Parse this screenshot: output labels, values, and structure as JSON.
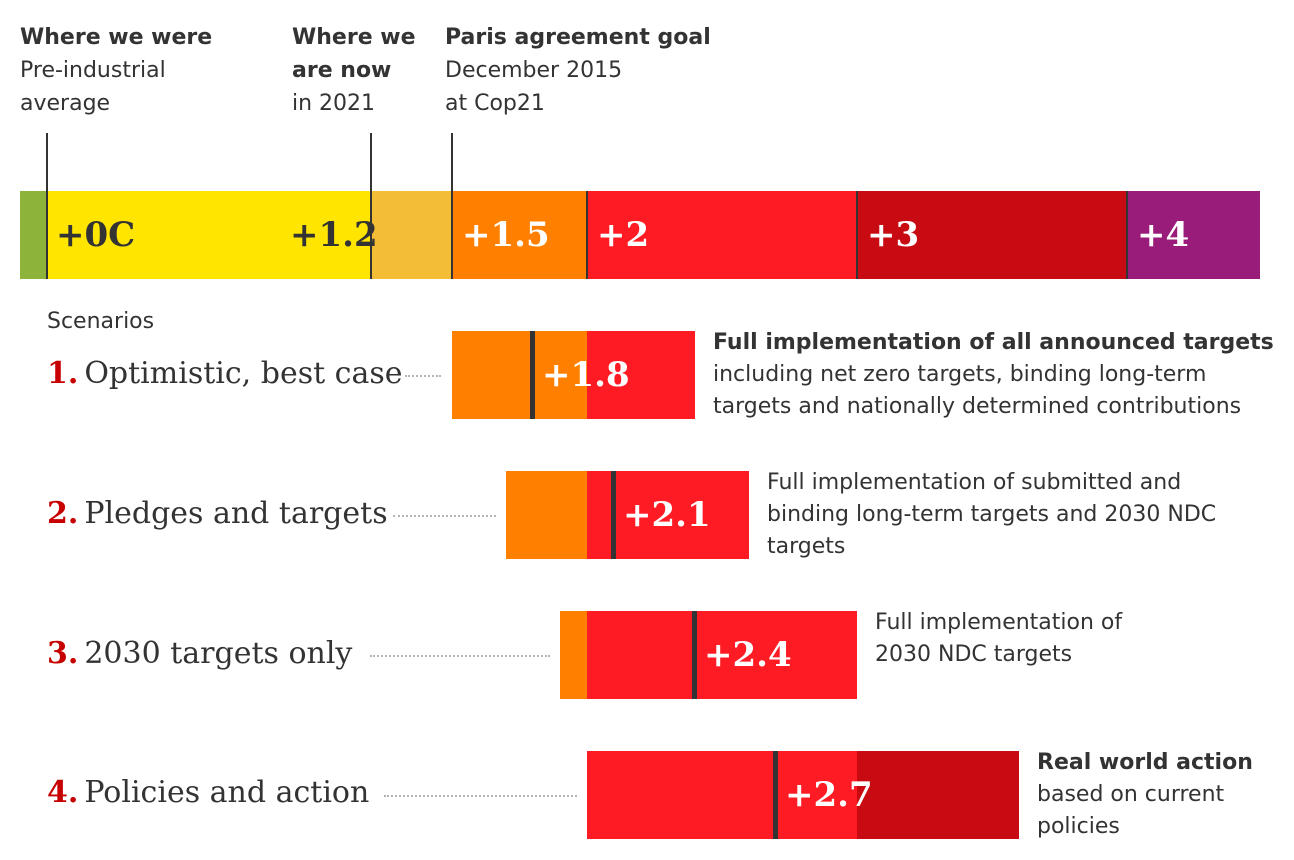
{
  "header": {
    "col1": {
      "title": "Where we were",
      "line2": "Pre-industrial",
      "line3": "average"
    },
    "col2": {
      "title_line1": "Where we",
      "title_line2": "are now",
      "line3": "in 2021"
    },
    "col3": {
      "title": "Paris agreement goal",
      "line2": "December 2015",
      "line3": "at Cop21"
    }
  },
  "colors": {
    "green": "#8db33a",
    "yellow": "#ffe500",
    "gold": "#f3bd35",
    "orange": "#ff7f00",
    "red": "#ff1b24",
    "darkred": "#c80b12",
    "purple": "#9a1c7a",
    "label_red": "#c70000",
    "marker": "#333333"
  },
  "scenarios_title": "Scenarios",
  "chart_data": {
    "type": "bar",
    "scale": {
      "unit": "C",
      "labels": [
        "+0C",
        "+1.2",
        "+1.5",
        "+2",
        "+3",
        "+4"
      ],
      "markers": [
        "Where we were",
        "Where we are now",
        "Paris agreement goal"
      ]
    },
    "scenarios": [
      {
        "num": "1.",
        "name": "Optimistic, best case",
        "value": 1.8,
        "value_label": "+1.8",
        "desc_bold": "Full implementation of all announced targets",
        "desc": [
          "including net zero targets, binding long-term",
          "targets and nationally determined contributions"
        ]
      },
      {
        "num": "2.",
        "name": "Pledges and targets",
        "value": 2.1,
        "value_label": "+2.1",
        "desc_bold": "",
        "desc": [
          "Full implementation of submitted and",
          "binding long-term targets and 2030 NDC",
          "targets"
        ]
      },
      {
        "num": "3.",
        "name": "2030 targets only",
        "value": 2.4,
        "value_label": "+2.4",
        "desc_bold": "",
        "desc": [
          "Full implementation of",
          "2030 NDC targets"
        ]
      },
      {
        "num": "4.",
        "name": "Policies and action",
        "value": 2.7,
        "value_label": "+2.7",
        "desc_bold": "Real world action",
        "desc": [
          "based on current",
          "policies"
        ]
      }
    ]
  }
}
